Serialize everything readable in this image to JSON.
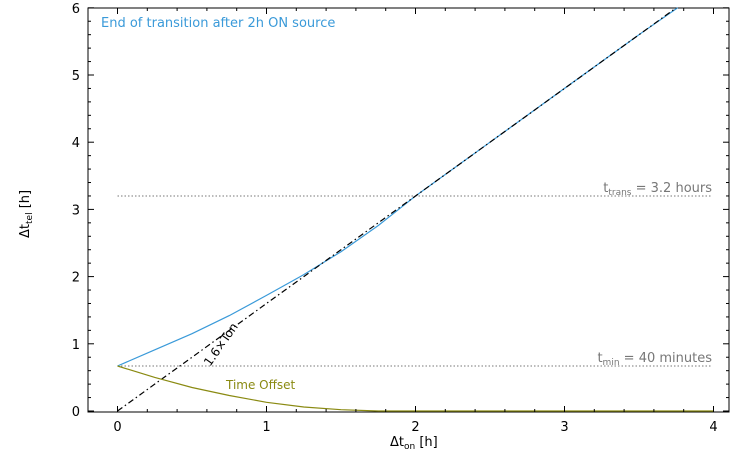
{
  "chart_data": {
    "type": "line",
    "title": "",
    "xlabel": {
      "main": "Δt",
      "sub": "on",
      "unit": " [h]"
    },
    "ylabel": {
      "main": "Δt",
      "sub": "tel",
      "unit": " [h]"
    },
    "xlim": [
      -0.2,
      4.1
    ],
    "ylim": [
      0,
      6
    ],
    "x_ticks": [
      "0",
      "1",
      "2",
      "3",
      "4"
    ],
    "y_ticks": [
      "0",
      "1",
      "2",
      "3",
      "4",
      "5",
      "6"
    ],
    "grid": false,
    "series": [
      {
        "name": "End of transition after 2h ON source",
        "color": "#3a9ad9",
        "style": "solid",
        "x": [
          0,
          0.25,
          0.5,
          0.75,
          1.0,
          1.25,
          1.5,
          1.75,
          2.0,
          2.5,
          3.0,
          3.5,
          3.76
        ],
        "y": [
          0.67,
          0.91,
          1.15,
          1.42,
          1.72,
          2.03,
          2.37,
          2.76,
          3.2,
          4.0,
          4.8,
          5.6,
          6.0
        ]
      },
      {
        "name": "1.6×Ton",
        "color": "#000000",
        "style": "dashed",
        "x": [
          0,
          3.75
        ],
        "y": [
          0,
          6.0
        ]
      },
      {
        "name": "Time Offset",
        "color": "#8a8a12",
        "style": "solid",
        "x": [
          0,
          0.25,
          0.5,
          0.75,
          1.0,
          1.25,
          1.5,
          1.75,
          4.0
        ],
        "y": [
          0.67,
          0.5,
          0.35,
          0.23,
          0.13,
          0.06,
          0.02,
          0.0,
          0.0
        ]
      }
    ],
    "reference_lines": [
      {
        "y": 3.2,
        "color": "#777777",
        "label_main": "t",
        "label_sub": "trans",
        "label_rest": " = 3.2 hours"
      },
      {
        "y": 0.67,
        "color": "#777777",
        "label_main": "t",
        "label_sub": "min",
        "label_rest": " = 40 minutes"
      }
    ],
    "annotations": {
      "legend_text": "End of transition after 2h ON source",
      "legend_color": "#3a9ad9",
      "dashed_label": "1.6×Ton",
      "offset_label": "Time Offset",
      "offset_color": "#8a8a12"
    }
  }
}
